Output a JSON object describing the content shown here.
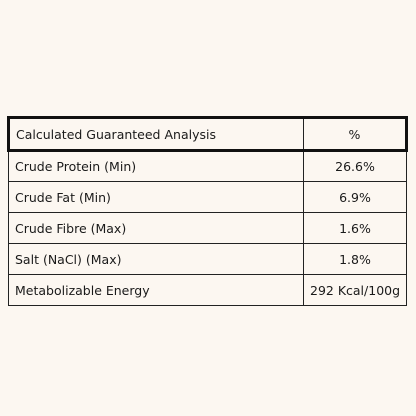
{
  "table": {
    "header": {
      "label": "Calculated Guaranteed Analysis",
      "value": "%"
    },
    "rows": [
      {
        "label": "Crude Protein (Min)",
        "value": "26.6%"
      },
      {
        "label": "Crude Fat (Min)",
        "value": "6.9%"
      },
      {
        "label": "Crude Fibre (Max)",
        "value": "1.6%"
      },
      {
        "label": "Salt (NaCl) (Max)",
        "value": "1.8%"
      },
      {
        "label": "Metabolizable Energy",
        "value": "292 Kcal/100g"
      }
    ]
  }
}
